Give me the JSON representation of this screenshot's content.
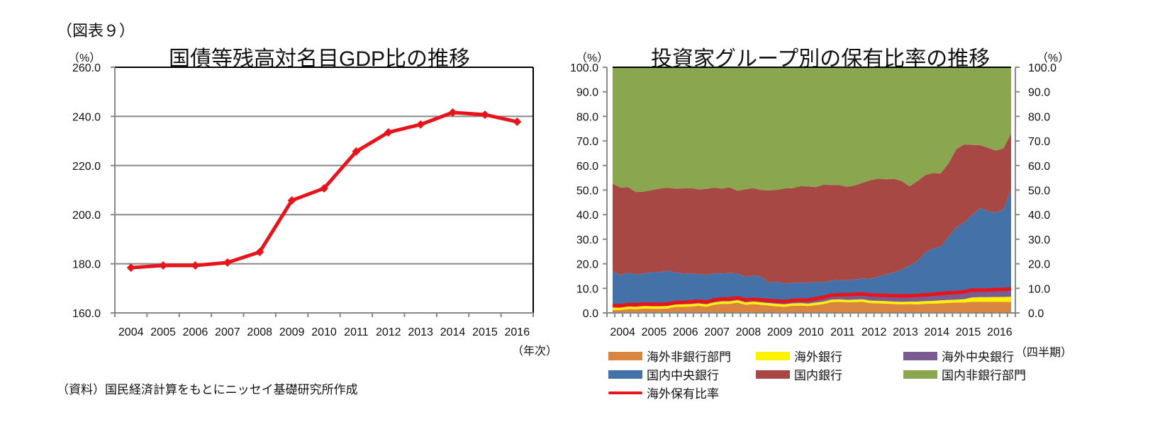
{
  "figure_label": "（図表９）",
  "source_note": "（資料）国民経済計算をもとにニッセイ基礎研究所作成",
  "chart_data": [
    {
      "type": "line",
      "title": "国債等残高対名目GDP比の推移",
      "ylabel": "（%）",
      "xlabel": "（年次）",
      "ylim": [
        160,
        260
      ],
      "yticks": [
        "260.0",
        "240.0",
        "220.0",
        "200.0",
        "180.0",
        "160.0"
      ],
      "ytick_values": [
        260,
        240,
        220,
        200,
        180,
        160
      ],
      "grid": true,
      "categories": [
        "2004",
        "2005",
        "2006",
        "2007",
        "2008",
        "2009",
        "2010",
        "2011",
        "2012",
        "2013",
        "2014",
        "2015",
        "2016"
      ],
      "series": [
        {
          "name": "国債等残高対名目GDP比",
          "color": "#e8141b",
          "marker": "diamond",
          "values": [
            178.4,
            179.3,
            179.3,
            180.5,
            184.8,
            205.8,
            210.7,
            225.7,
            233.5,
            236.7,
            241.6,
            240.7,
            237.8
          ]
        }
      ]
    },
    {
      "type": "area",
      "stacked": true,
      "title": "投資家グループ別の保有比率の推移",
      "ylabel": "（%）",
      "ylabel_right": "（%）",
      "xlabel": "（四半期）",
      "ylim": [
        0,
        100
      ],
      "yticks": [
        "100.0",
        "90.0",
        "80.0",
        "70.0",
        "60.0",
        "50.0",
        "40.0",
        "30.0",
        "20.0",
        "10.0",
        "0.0"
      ],
      "ytick_values": [
        100,
        90,
        80,
        70,
        60,
        50,
        40,
        30,
        20,
        10,
        0
      ],
      "year_labels": [
        "2004",
        "2005",
        "2006",
        "2007",
        "2008",
        "2009",
        "2010",
        "2011",
        "2012",
        "2013",
        "2014",
        "2015",
        "2016"
      ],
      "quarters_per_year": 4,
      "legend_position": "bottom",
      "series": [
        {
          "name": "海外非銀行部門",
          "color": "#d9843f",
          "values": [
            1.2,
            1.2,
            1.6,
            1.5,
            1.8,
            1.7,
            1.7,
            1.8,
            2.4,
            2.5,
            2.6,
            2.9,
            2.5,
            3.3,
            3.7,
            3.7,
            4.2,
            3.3,
            3.6,
            3.3,
            3.0,
            2.7,
            2.5,
            2.9,
            3.0,
            2.8,
            3.2,
            3.6,
            4.4,
            4.5,
            4.3,
            4.4,
            4.5,
            4.0,
            3.9,
            3.8,
            3.6,
            3.5,
            3.6,
            3.5,
            3.7,
            3.8,
            3.9,
            4.1,
            4.2,
            4.2,
            4.5,
            4.5,
            4.5,
            4.5,
            4.5,
            4.5
          ]
        },
        {
          "name": "海外銀行",
          "color": "#fff200",
          "values": [
            1.0,
            0.9,
            1.0,
            1.0,
            1.0,
            1.0,
            1.0,
            1.0,
            1.0,
            1.0,
            1.0,
            1.0,
            1.0,
            1.0,
            1.0,
            1.0,
            1.0,
            1.0,
            1.0,
            1.0,
            1.0,
            1.0,
            1.0,
            1.0,
            1.0,
            1.0,
            1.0,
            1.0,
            1.0,
            1.0,
            1.0,
            1.0,
            1.0,
            1.0,
            1.0,
            1.0,
            1.0,
            1.0,
            1.0,
            1.1,
            1.1,
            1.1,
            1.2,
            1.2,
            1.2,
            1.4,
            1.8,
            1.9,
            1.9,
            2.0,
            2.0,
            2.1
          ]
        },
        {
          "name": "海外中央銀行",
          "color": "#7a5c93",
          "values": [
            0.8,
            0.8,
            0.8,
            0.8,
            0.8,
            0.8,
            0.8,
            0.8,
            0.8,
            0.8,
            0.9,
            0.9,
            0.9,
            1.0,
            1.0,
            1.0,
            1.0,
            1.0,
            1.0,
            1.0,
            1.1,
            1.1,
            1.1,
            1.2,
            1.3,
            1.4,
            1.6,
            1.8,
            1.8,
            2.0,
            2.1,
            2.2,
            2.2,
            2.3,
            2.3,
            2.3,
            2.4,
            2.4,
            2.4,
            2.5,
            2.6,
            2.7,
            2.8,
            2.9,
            2.9,
            3.0,
            3.0,
            2.9,
            2.9,
            3.0,
            3.1,
            3.2
          ]
        },
        {
          "name": "国内中央銀行",
          "color": "#4472a8",
          "values": [
            13.9,
            12.5,
            13.0,
            12.4,
            12.5,
            13.1,
            13.0,
            13.7,
            12.3,
            11.7,
            11.6,
            11.0,
            11.1,
            10.8,
            10.4,
            10.5,
            9.9,
            9.4,
            9.6,
            9.5,
            7.2,
            7.9,
            7.3,
            7.2,
            7.0,
            7.1,
            6.8,
            6.1,
            6.0,
            5.9,
            5.9,
            6.0,
            6.4,
            6.6,
            7.6,
            8.6,
            9.5,
            10.8,
            12.2,
            14.0,
            17.2,
            18.6,
            19.2,
            22.8,
            26.6,
            28.3,
            30.5,
            33.3,
            32.2,
            31.3,
            32.6,
            40.6
          ]
        },
        {
          "name": "国内銀行",
          "color": "#a84845",
          "values": [
            35.7,
            35.6,
            34.8,
            33.5,
            33.3,
            33.4,
            34.1,
            33.6,
            34.1,
            34.7,
            34.7,
            34.5,
            35.0,
            34.9,
            34.5,
            34.9,
            33.6,
            35.6,
            35.6,
            35.2,
            37.6,
            37.4,
            38.8,
            38.5,
            39.3,
            39.2,
            38.6,
            39.7,
            38.9,
            38.7,
            38.0,
            38.3,
            38.9,
            40.1,
            39.9,
            38.7,
            38.1,
            36.0,
            32.3,
            32.5,
            31.5,
            30.7,
            29.7,
            29.9,
            31.8,
            31.7,
            28.6,
            25.7,
            25.8,
            25.3,
            24.7,
            22.6
          ]
        },
        {
          "name": "国内非銀行部門",
          "color": "#8aa64f",
          "values": [
            47.4,
            49.0,
            48.8,
            50.8,
            50.6,
            50.0,
            49.4,
            49.1,
            49.4,
            49.3,
            49.2,
            49.7,
            49.5,
            49.0,
            49.4,
            48.9,
            50.3,
            49.7,
            49.2,
            50.0,
            50.1,
            49.9,
            49.3,
            49.2,
            48.4,
            48.6,
            48.8,
            47.8,
            47.9,
            48.9,
            48.7,
            48.1,
            47.0,
            46.0,
            45.3,
            45.6,
            45.4,
            46.3,
            46.5,
            46.4,
            43.9,
            43.1,
            43.2,
            39.1,
            33.3,
            31.4,
            31.6,
            31.7,
            32.7,
            33.9,
            33.1,
            27.0
          ]
        }
      ],
      "overlay_line": {
        "name": "海外保有比率",
        "color": "#e8141b",
        "values": [
          3.0,
          2.9,
          3.4,
          3.3,
          3.6,
          3.5,
          3.5,
          3.6,
          4.2,
          4.3,
          4.5,
          4.8,
          4.4,
          5.3,
          5.7,
          5.7,
          6.2,
          5.3,
          5.6,
          5.3,
          5.1,
          4.8,
          4.6,
          5.1,
          5.3,
          5.2,
          5.8,
          6.4,
          7.2,
          7.4,
          7.4,
          7.6,
          7.7,
          7.3,
          7.2,
          7.1,
          7.0,
          6.9,
          7.0,
          7.1,
          7.4,
          7.6,
          7.9,
          8.2,
          8.3,
          8.6,
          9.3,
          9.3,
          9.3,
          9.5,
          9.6,
          9.8
        ]
      }
    }
  ],
  "legend": [
    {
      "label": "海外非銀行部門",
      "color": "#d9843f",
      "kind": "area"
    },
    {
      "label": "海外銀行",
      "color": "#fff200",
      "kind": "area"
    },
    {
      "label": "海外中央銀行",
      "color": "#7a5c93",
      "kind": "area"
    },
    {
      "label": "国内中央銀行",
      "color": "#4472a8",
      "kind": "area"
    },
    {
      "label": "国内銀行",
      "color": "#a84845",
      "kind": "area"
    },
    {
      "label": "国内非銀行部門",
      "color": "#8aa64f",
      "kind": "area"
    },
    {
      "label": "海外保有比率",
      "color": "#e8141b",
      "kind": "line"
    }
  ]
}
